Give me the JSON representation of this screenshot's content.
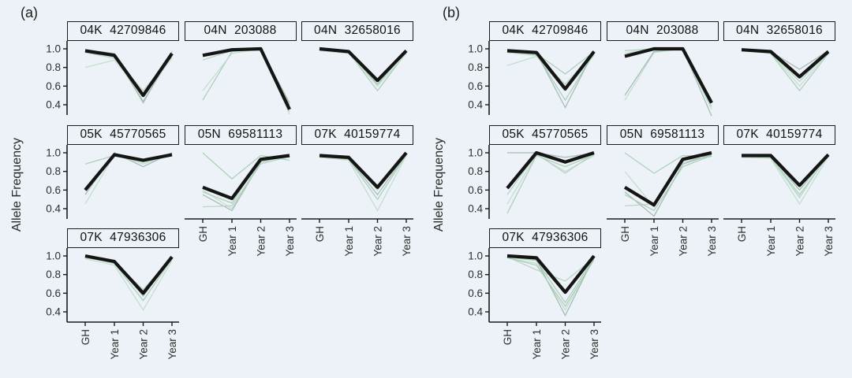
{
  "figure": {
    "background": "#edf2f8",
    "panels": [
      {
        "label": "(a)",
        "ylabel": "Allele Frequency"
      },
      {
        "label": "(b)",
        "ylabel": "Allele Frequency"
      }
    ]
  },
  "chart_data": [
    {
      "type": "line",
      "panel": "(a)",
      "ylabel": "Allele Frequency",
      "x_categories": [
        "GH",
        "Year 1",
        "Year 2",
        "Year 3"
      ],
      "y_ticks": [
        "1.0",
        "0.8",
        "0.6",
        "0.4"
      ],
      "ylim": [
        0.3,
        1.05
      ],
      "grid": "off",
      "legend": "none",
      "mean_color": "#151515",
      "replicate_colors": [
        "#a6ccb3",
        "#bfdcc9",
        "#9fb7ac",
        "#b1d3be"
      ],
      "facets": [
        {
          "title": "04K  42709846",
          "mean": [
            0.98,
            0.93,
            0.5,
            0.95
          ],
          "replicates": [
            [
              0.97,
              0.92,
              0.44,
              0.93
            ],
            [
              0.8,
              0.88,
              0.5,
              0.9
            ],
            [
              0.99,
              0.95,
              0.42,
              0.97
            ],
            [
              0.96,
              0.9,
              0.55,
              0.92
            ]
          ]
        },
        {
          "title": "04N  203088",
          "mean": [
            0.93,
            0.99,
            1.0,
            0.35
          ],
          "replicates": [
            [
              0.45,
              0.97,
              1.0,
              0.4
            ],
            [
              0.55,
              0.95,
              1.0,
              0.3
            ],
            [
              0.92,
              0.99,
              1.0,
              0.42
            ],
            [
              0.88,
              0.98,
              1.0,
              0.33
            ]
          ]
        },
        {
          "title": "04N  32658016",
          "mean": [
            1.0,
            0.97,
            0.66,
            0.98
          ],
          "replicates": [
            [
              0.99,
              0.96,
              0.55,
              0.96
            ],
            [
              0.98,
              0.95,
              0.6,
              0.95
            ],
            [
              1.0,
              0.97,
              0.62,
              0.98
            ]
          ]
        },
        {
          "title": "05K  45770565",
          "mean": [
            0.6,
            0.98,
            0.92,
            0.98
          ],
          "replicates": [
            [
              0.88,
              0.97,
              0.9,
              0.97
            ],
            [
              0.45,
              0.98,
              0.88,
              0.98
            ],
            [
              0.55,
              1.0,
              0.85,
              1.0
            ],
            [
              0.62,
              0.99,
              0.92,
              0.99
            ]
          ]
        },
        {
          "title": "05N  69581113",
          "mean": [
            0.63,
            0.51,
            0.93,
            0.97
          ],
          "replicates": [
            [
              1.0,
              0.72,
              0.97,
              0.92
            ],
            [
              0.6,
              0.4,
              0.92,
              0.95
            ],
            [
              0.55,
              0.38,
              0.9,
              0.97
            ],
            [
              0.42,
              0.43,
              0.88,
              0.96
            ],
            [
              0.58,
              0.46,
              0.93,
              0.96
            ]
          ]
        },
        {
          "title": "07K  40159774",
          "mean": [
            0.97,
            0.95,
            0.63,
            1.0
          ],
          "replicates": [
            [
              0.96,
              0.93,
              0.5,
              0.98
            ],
            [
              0.95,
              0.92,
              0.38,
              0.97
            ],
            [
              0.97,
              0.94,
              0.55,
              0.99
            ],
            [
              0.98,
              0.95,
              0.6,
              1.0
            ]
          ]
        },
        {
          "title": "07K  47936306",
          "mean": [
            1.0,
            0.94,
            0.6,
            0.99
          ],
          "replicates": [
            [
              0.99,
              0.92,
              0.52,
              0.97
            ],
            [
              0.97,
              0.9,
              0.42,
              0.95
            ],
            [
              1.0,
              0.94,
              0.57,
              0.99
            ],
            [
              0.98,
              0.93,
              0.64,
              0.98
            ]
          ]
        }
      ]
    },
    {
      "type": "line",
      "panel": "(b)",
      "ylabel": "Allele Frequency",
      "x_categories": [
        "GH",
        "Year 1",
        "Year 2",
        "Year 3"
      ],
      "y_ticks": [
        "1.0",
        "0.8",
        "0.6",
        "0.4"
      ],
      "ylim": [
        0.3,
        1.05
      ],
      "grid": "off",
      "legend": "none",
      "mean_color": "#151515",
      "replicate_colors": [
        "#a6ccb3",
        "#bfdcc9",
        "#9fb7ac",
        "#b1d3be"
      ],
      "facets": [
        {
          "title": "04K  42709846",
          "mean": [
            0.98,
            0.96,
            0.57,
            0.97
          ],
          "replicates": [
            [
              0.97,
              0.94,
              0.45,
              0.95
            ],
            [
              0.82,
              0.92,
              0.55,
              0.93
            ],
            [
              0.99,
              0.96,
              0.37,
              0.98
            ],
            [
              0.96,
              0.93,
              0.62,
              0.96
            ],
            [
              0.97,
              0.95,
              0.73,
              0.97
            ]
          ]
        },
        {
          "title": "04N  203088",
          "mean": [
            0.92,
            1.0,
            1.0,
            0.42
          ],
          "replicates": [
            [
              0.98,
              1.0,
              1.0,
              0.45
            ],
            [
              0.45,
              0.96,
              1.0,
              0.35
            ],
            [
              0.5,
              0.97,
              1.0,
              0.28
            ],
            [
              0.95,
              1.0,
              1.0,
              0.38
            ]
          ]
        },
        {
          "title": "04N  32658016",
          "mean": [
            0.99,
            0.97,
            0.7,
            0.97
          ],
          "replicates": [
            [
              0.98,
              0.95,
              0.55,
              0.95
            ],
            [
              0.99,
              0.96,
              0.6,
              0.96
            ],
            [
              1.0,
              0.97,
              0.78,
              0.98
            ],
            [
              0.99,
              0.96,
              0.65,
              0.97
            ]
          ]
        },
        {
          "title": "05K  45770565",
          "mean": [
            0.62,
            1.0,
            0.9,
            1.0
          ],
          "replicates": [
            [
              0.35,
              0.97,
              0.85,
              0.98
            ],
            [
              0.45,
              0.98,
              0.8,
              0.97
            ],
            [
              1.0,
              1.0,
              0.95,
              1.0
            ],
            [
              0.55,
              0.99,
              0.78,
              0.99
            ]
          ]
        },
        {
          "title": "05N  69581113",
          "mean": [
            0.63,
            0.44,
            0.93,
            1.0
          ],
          "replicates": [
            [
              1.0,
              0.78,
              0.97,
              0.96
            ],
            [
              0.8,
              0.42,
              0.9,
              0.97
            ],
            [
              0.58,
              0.32,
              0.88,
              0.98
            ],
            [
              0.43,
              0.45,
              0.92,
              0.96
            ],
            [
              0.55,
              0.38,
              0.85,
              0.97
            ]
          ]
        },
        {
          "title": "07K  40159774",
          "mean": [
            0.97,
            0.97,
            0.65,
            0.98
          ],
          "replicates": [
            [
              0.96,
              0.95,
              0.55,
              0.97
            ],
            [
              0.95,
              0.94,
              0.45,
              0.96
            ],
            [
              0.98,
              0.96,
              0.6,
              0.98
            ],
            [
              0.97,
              0.95,
              0.52,
              0.99
            ]
          ]
        },
        {
          "title": "07K  47936306",
          "mean": [
            1.0,
            0.98,
            0.61,
            1.0
          ],
          "replicates": [
            [
              0.99,
              0.95,
              0.5,
              0.98
            ],
            [
              0.98,
              0.92,
              0.42,
              0.97
            ],
            [
              1.0,
              0.96,
              0.36,
              0.99
            ],
            [
              0.99,
              0.85,
              0.73,
              0.98
            ],
            [
              0.98,
              0.9,
              0.46,
              0.96
            ]
          ]
        }
      ]
    }
  ]
}
